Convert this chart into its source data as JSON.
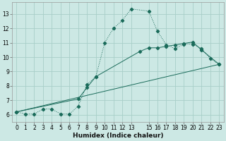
{
  "xlabel": "Humidex (Indice chaleur)",
  "bg_color": "#cce8e4",
  "grid_color": "#a8cec8",
  "line_color": "#1a6b5a",
  "xlim": [
    -0.5,
    23.5
  ],
  "ylim": [
    5.5,
    13.8
  ],
  "xticks": [
    0,
    1,
    2,
    3,
    4,
    5,
    6,
    7,
    8,
    9,
    10,
    11,
    12,
    13,
    15,
    16,
    17,
    18,
    19,
    20,
    21,
    22,
    23
  ],
  "yticks": [
    6,
    7,
    8,
    9,
    10,
    11,
    12,
    13
  ],
  "line1_x": [
    0,
    1,
    2,
    3,
    4,
    5,
    6,
    7,
    8,
    9,
    10,
    11,
    12,
    13,
    15,
    16,
    17,
    18,
    19,
    20,
    21,
    22,
    23
  ],
  "line1_y": [
    6.2,
    6.05,
    6.05,
    6.4,
    6.4,
    6.05,
    6.05,
    6.6,
    8.1,
    8.65,
    11.0,
    12.0,
    12.55,
    13.35,
    13.2,
    11.8,
    10.85,
    10.6,
    10.9,
    10.9,
    10.6,
    9.9,
    9.5
  ],
  "line2_x": [
    0,
    7,
    8,
    9,
    14,
    15,
    16,
    17,
    18,
    19,
    20,
    21,
    23
  ],
  "line2_y": [
    6.2,
    7.1,
    7.9,
    8.65,
    10.4,
    10.65,
    10.65,
    10.75,
    10.85,
    10.95,
    11.05,
    10.5,
    9.5
  ],
  "line3_x": [
    0,
    23
  ],
  "line3_y": [
    6.2,
    9.5
  ],
  "tick_fontsize": 5.5,
  "xlabel_fontsize": 6.5
}
